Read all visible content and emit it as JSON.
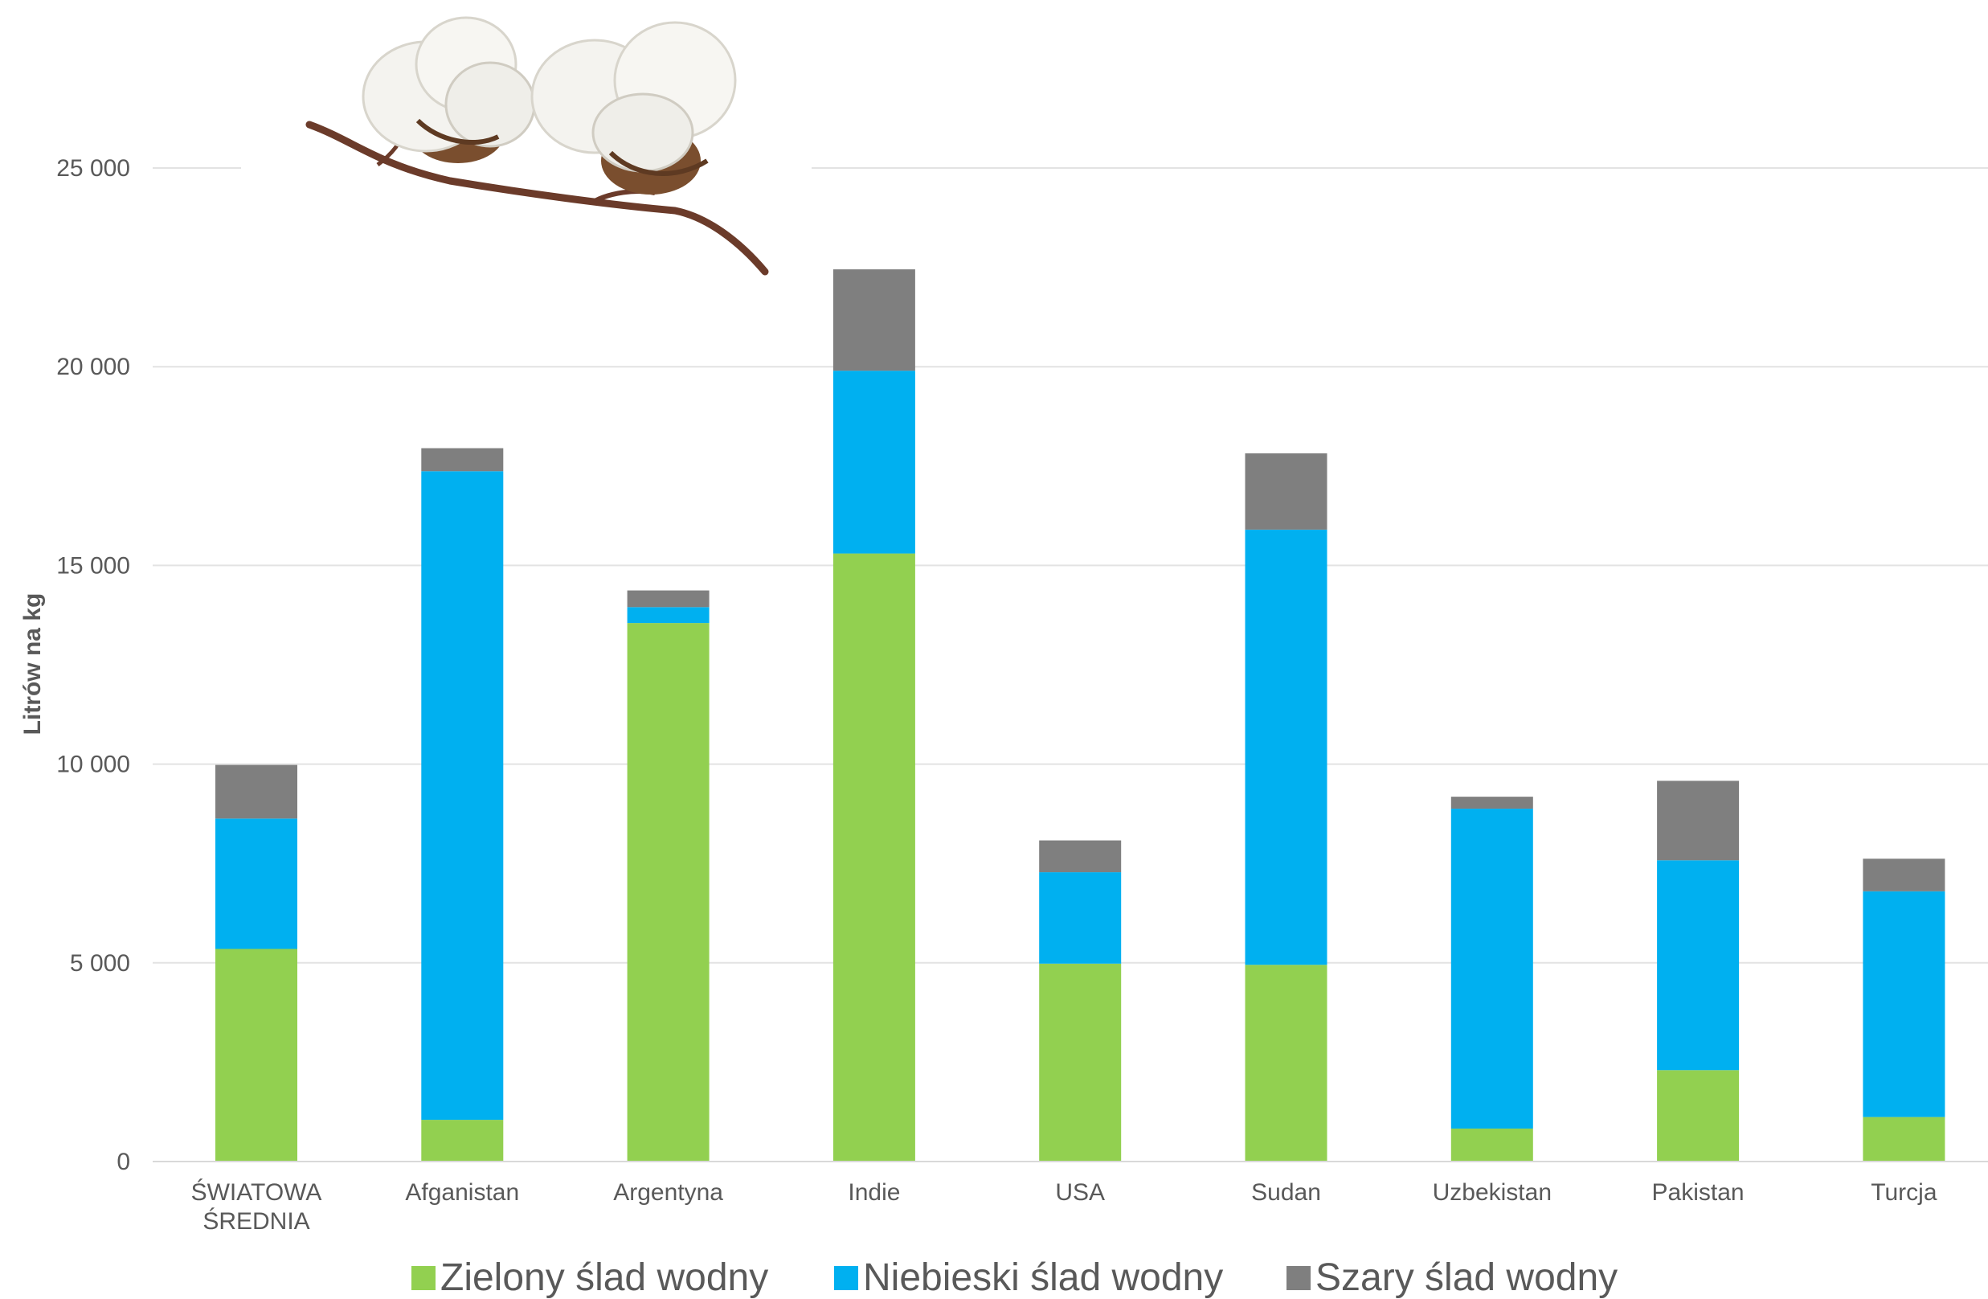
{
  "chart_data": {
    "type": "bar",
    "stacked": true,
    "ylabel": "Litrów na kg",
    "ylim": [
      0,
      25000
    ],
    "yticks": [
      0,
      5000,
      10000,
      15000,
      20000,
      25000
    ],
    "ytick_labels": [
      "0",
      "5 000",
      "10 000",
      "15 000",
      "20 000",
      "25 000"
    ],
    "grid": true,
    "legend_position": "bottom",
    "categories": [
      [
        "ŚWIATOWA",
        "ŚREDNIA"
      ],
      [
        "Afganistan"
      ],
      [
        "Argentyna"
      ],
      [
        "Indie"
      ],
      [
        "USA"
      ],
      [
        "Sudan"
      ],
      [
        "Uzbekistan"
      ],
      [
        "Pakistan"
      ],
      [
        "Turcja"
      ]
    ],
    "series": [
      {
        "name": "Zielony ślad wodny",
        "color": "#92d050",
        "values": [
          5350,
          1050,
          13550,
          15300,
          4980,
          4950,
          830,
          2300,
          1120
        ]
      },
      {
        "name": "Niebieski ślad wodny",
        "color": "#00b0f0",
        "values": [
          3280,
          16320,
          400,
          4600,
          2300,
          10950,
          8050,
          5280,
          5680
        ]
      },
      {
        "name": "Szary ślad wodny",
        "color": "#7f7f7f",
        "values": [
          1350,
          580,
          420,
          2550,
          800,
          1920,
          300,
          2000,
          820
        ]
      }
    ],
    "decoration": {
      "image": "cotton-branch",
      "colors": {
        "boll": "#f4f3ef",
        "husk": "#7a4e2e",
        "stem": "#6b3b2a"
      }
    }
  }
}
